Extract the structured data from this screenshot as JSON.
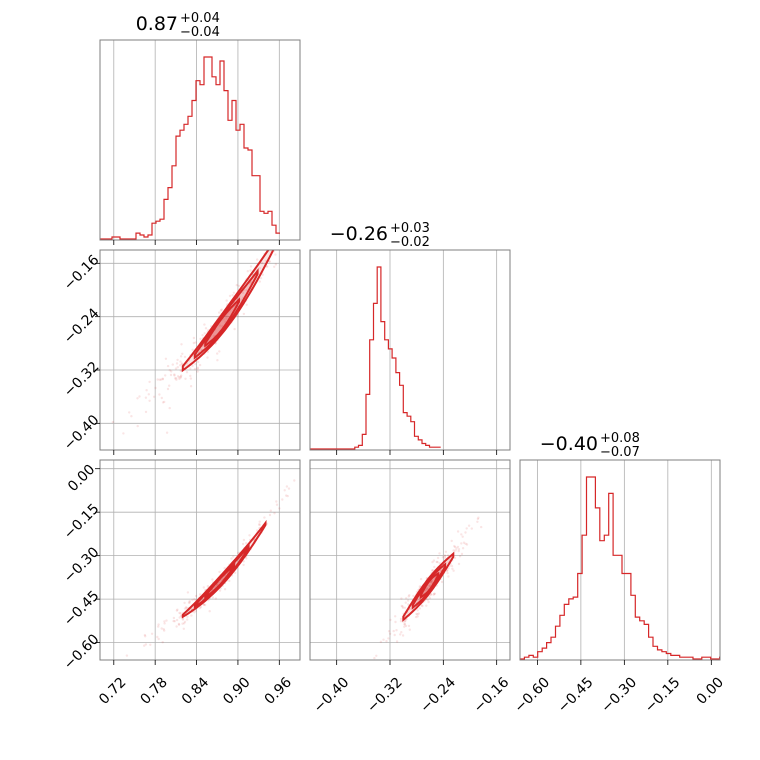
{
  "chart_data": {
    "type": "scatter",
    "subtype": "corner-plot",
    "color": "#d62728",
    "grid": true,
    "parameters": [
      {
        "median": 0.87,
        "plus": 0.04,
        "minus": 0.04,
        "title_main": "0.87",
        "title_plus": "+0.04",
        "title_minus": "−0.04",
        "range": [
          0.7,
          0.99
        ]
      },
      {
        "median": -0.26,
        "plus": 0.03,
        "minus": 0.02,
        "title_main": "−0.26",
        "title_plus": "+0.03",
        "title_minus": "−0.02",
        "range": [
          -0.44,
          -0.14
        ]
      },
      {
        "median": -0.4,
        "plus": 0.08,
        "minus": 0.07,
        "title_main": "−0.40",
        "title_plus": "+0.08",
        "title_minus": "−0.07",
        "range": [
          -0.66,
          0.03
        ]
      }
    ],
    "axis_ticks": {
      "p0": [
        0.72,
        0.78,
        0.84,
        0.9,
        0.96
      ],
      "p0_labels": [
        "0.72",
        "0.78",
        "0.84",
        "0.90",
        "0.96"
      ],
      "p1": [
        -0.4,
        -0.32,
        -0.24,
        -0.16
      ],
      "p1_labels": [
        "−0.40",
        "−0.32",
        "−0.24",
        "−0.16"
      ],
      "p2": [
        -0.6,
        -0.45,
        -0.3,
        -0.15,
        0.0
      ],
      "p2_labels": [
        "−0.60",
        "−0.45",
        "−0.30",
        "−0.15",
        "0.00"
      ]
    },
    "histograms": {
      "p0": {
        "bin_start": 0.7,
        "bin_width": 0.0058,
        "counts": [
          0,
          0,
          0,
          1,
          1,
          0,
          0,
          0,
          0,
          3,
          2,
          1,
          2,
          8,
          9,
          10,
          20,
          26,
          37,
          52,
          55,
          58,
          62,
          70,
          80,
          78,
          92,
          92,
          82,
          78,
          90,
          75,
          60,
          70,
          55,
          58,
          46,
          45,
          32,
          32,
          14,
          13,
          14,
          7,
          3
        ]
      },
      "p1": {
        "bin_start": -0.44,
        "bin_width": 0.0056,
        "counts": [
          0,
          0,
          0,
          0,
          0,
          0,
          0,
          0,
          0,
          0,
          0,
          0,
          1,
          2,
          8,
          30,
          60,
          80,
          100,
          70,
          60,
          55,
          50,
          42,
          35,
          20,
          18,
          15,
          7,
          5,
          3,
          2,
          1,
          1,
          1
        ]
      },
      "p2": {
        "bin_start": -0.66,
        "bin_width": 0.0153,
        "counts": [
          0,
          1,
          2,
          1,
          4,
          6,
          9,
          12,
          18,
          24,
          30,
          33,
          34,
          47,
          68,
          100,
          100,
          83,
          65,
          68,
          91,
          57,
          57,
          47,
          47,
          35,
          23,
          21,
          19,
          12,
          7,
          5,
          4,
          3,
          2,
          2,
          1,
          1,
          1,
          0,
          0,
          1,
          1,
          0,
          0,
          1
        ]
      }
    },
    "scatter_panels": [
      {
        "x": "p0",
        "y": "p1",
        "center": [
          0.87,
          -0.26
        ],
        "slope": 1.3,
        "curvature": 3.0,
        "ridge_x": [
          0.82,
          0.96
        ],
        "half_width": 0.01
      },
      {
        "x": "p0",
        "y": "p2",
        "center": [
          0.87,
          -0.4
        ],
        "slope": 2.5,
        "curvature": 7.0,
        "ridge_x": [
          0.82,
          0.94
        ],
        "half_width": 0.012
      },
      {
        "x": "p1",
        "y": "p2",
        "center": [
          -0.26,
          -0.4
        ],
        "slope": 2.9,
        "curvature": 0.0,
        "ridge_x": [
          -0.3,
          -0.225
        ],
        "half_width": 0.018
      }
    ]
  }
}
